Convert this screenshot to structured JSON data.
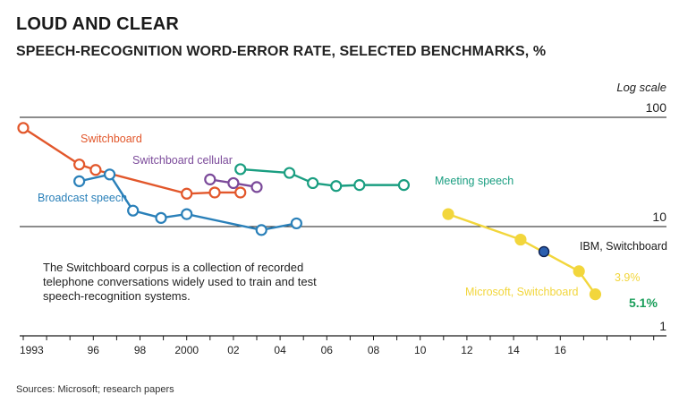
{
  "title": "LOUD AND CLEAR",
  "subtitle": "SPEECH-RECOGNITION WORD-ERROR RATE, SELECTED BENCHMARKS, %",
  "note": "The Switchboard corpus is a collection of recorded telephone conversations widely used to train and test speech-recognition systems.",
  "source": "Sources: Microsoft; research papers",
  "chart_data": {
    "type": "line",
    "title": "SPEECH-RECOGNITION WORD-ERROR RATE, SELECTED BENCHMARKS, %",
    "y_scale": "log",
    "y_scale_label": "Log scale",
    "ylim": [
      1,
      100
    ],
    "xlim": [
      1993,
      2018
    ],
    "y_ticks": [
      {
        "value": 100,
        "label": "100"
      },
      {
        "value": 10,
        "label": "10"
      },
      {
        "value": 1,
        "label": "1"
      }
    ],
    "x_ticks": [
      {
        "value": 1993,
        "label": "1993"
      },
      {
        "value": 1996,
        "label": "96"
      },
      {
        "value": 1998,
        "label": "98"
      },
      {
        "value": 2000,
        "label": "2000"
      },
      {
        "value": 2002,
        "label": "02"
      },
      {
        "value": 2004,
        "label": "04"
      },
      {
        "value": 2006,
        "label": "06"
      },
      {
        "value": 2008,
        "label": "08"
      },
      {
        "value": 2010,
        "label": "10"
      },
      {
        "value": 2012,
        "label": "12"
      },
      {
        "value": 2014,
        "label": "14"
      },
      {
        "value": 2016,
        "label": "16"
      }
    ],
    "series": [
      {
        "name": "Switchboard",
        "color": "#e2572b",
        "x": [
          1993.0,
          1995.4,
          1996.1,
          2000.0,
          2001.2,
          2002.3
        ],
        "y": [
          80,
          37,
          33,
          20,
          20.5,
          20.5
        ]
      },
      {
        "name": "Switchboard cellular",
        "color": "#7b4a9a",
        "x": [
          2001.0,
          2002.0,
          2003.0
        ],
        "y": [
          27,
          25,
          23
        ]
      },
      {
        "name": "Broadcast speech",
        "color": "#2a80b9",
        "x": [
          1995.4,
          1996.7,
          1997.7,
          1998.9,
          2000.0,
          2003.2,
          2004.7
        ],
        "y": [
          26,
          30,
          14,
          12,
          13,
          9.3,
          10.7
        ]
      },
      {
        "name": "Meeting speech",
        "color": "#1a9e81",
        "x": [
          2002.3,
          2004.4,
          2005.4,
          2006.4,
          2007.4,
          2009.3
        ],
        "y": [
          33.5,
          31,
          25,
          23.5,
          24,
          24
        ]
      },
      {
        "name": "Microsoft, Switchboard",
        "color": "#f2d63c",
        "x": [
          2011.2,
          2014.3,
          2016.8,
          2017.5
        ],
        "y": [
          13,
          7.6,
          3.9,
          2.4
        ]
      },
      {
        "name": "IBM, Switchboard",
        "color": "#2b5fae",
        "x": [
          2015.3
        ],
        "y": [
          5.9
        ]
      }
    ],
    "annotations": [
      {
        "text": "3.9%",
        "color": "#f2d63c"
      },
      {
        "text": "5.1%",
        "color": "#1a9e5a"
      }
    ]
  }
}
